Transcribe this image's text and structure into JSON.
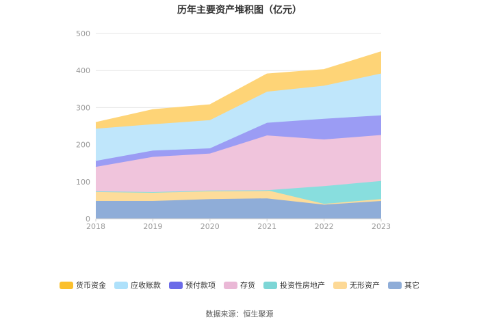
{
  "chart_data": {
    "type": "area",
    "stacked": true,
    "title": "历年主要资产堆积图（亿元）",
    "categories": [
      "2018",
      "2019",
      "2020",
      "2021",
      "2022",
      "2023"
    ],
    "ylim": [
      0,
      500
    ],
    "yticks": [
      0,
      100,
      200,
      300,
      400,
      500
    ],
    "grid": true,
    "legend_position": "bottom",
    "series": [
      {
        "name": "其它",
        "color": "#8fadd8",
        "values": [
          48,
          48,
          53,
          55,
          38,
          48
        ]
      },
      {
        "name": "无形资产",
        "color": "#fddc9a",
        "values": [
          26,
          24,
          23,
          22,
          2,
          5
        ]
      },
      {
        "name": "投资性房地产",
        "color": "#88dede",
        "values": [
          0,
          0,
          0,
          0,
          48,
          49
        ]
      },
      {
        "name": "存货",
        "color": "#f0c4dc",
        "values": [
          66,
          95,
          100,
          148,
          126,
          124
        ]
      },
      {
        "name": "预付款项",
        "color": "#9b9cf4",
        "values": [
          16,
          17,
          14,
          34,
          56,
          53
        ]
      },
      {
        "name": "应收账款",
        "color": "#bfe6fb",
        "values": [
          87,
          71,
          76,
          84,
          89,
          113
        ]
      },
      {
        "name": "货币资金",
        "color": "#fed477",
        "values": [
          16,
          39,
          41,
          47,
          43,
          58
        ]
      }
    ],
    "legend_order": [
      "货币资金",
      "应收账款",
      "预付款项",
      "存货",
      "投资性房地产",
      "无形资产",
      "其它"
    ],
    "source": "数据来源：恒生聚源"
  }
}
